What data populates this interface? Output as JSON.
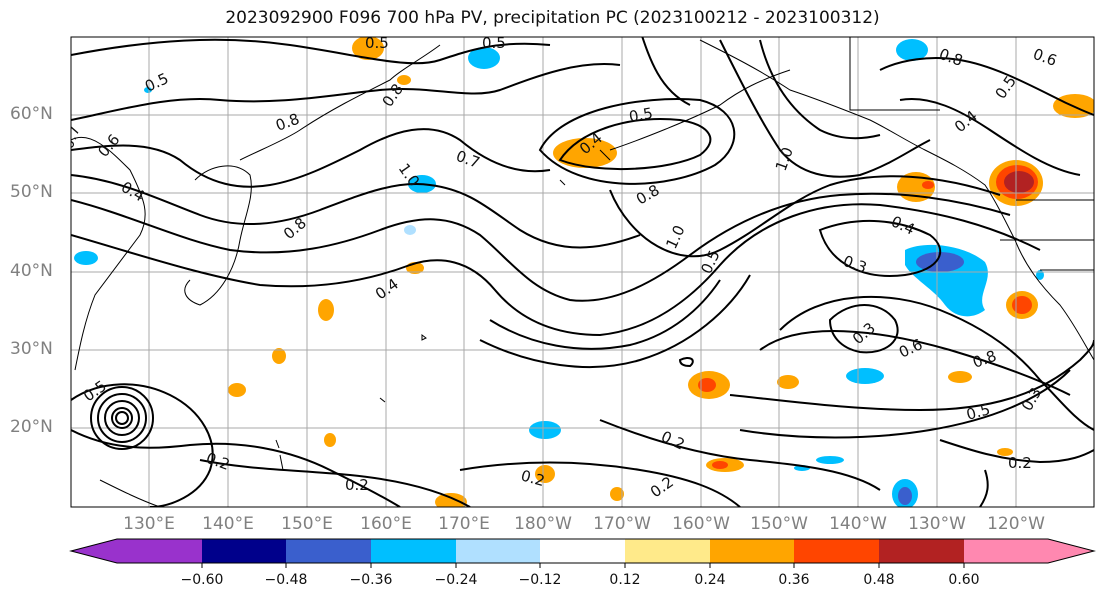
{
  "title": "2023092900 F096 700 hPa PV, precipitation PC (2023100212 - 2023100312)",
  "lat_labels": [
    "60°N",
    "50°N",
    "40°N",
    "30°N",
    "20°N"
  ],
  "lon_labels": [
    "130°E",
    "140°E",
    "150°E",
    "160°E",
    "170°E",
    "180°W",
    "170°W",
    "160°W",
    "150°W",
    "140°W",
    "130°W",
    "120°W"
  ],
  "contour_labels": [
    "0.5",
    "0.5",
    "0.8",
    "0.7",
    "0.5",
    "0.6",
    "0.4",
    "0.8",
    "0.7",
    "0.4",
    "0.5",
    "1.0",
    "0.4",
    "0.8",
    "1.0",
    "0.5",
    "0.8",
    "0.5",
    "0.4",
    "0.3",
    "0.3",
    "0.6",
    "0.8",
    "0.5",
    "0.3",
    "0.2",
    "0.2",
    "0.2",
    "0.2",
    "0.2",
    "0.2",
    "0.6",
    "0.4",
    "0.5",
    "0.8",
    "1.0",
    "0.6",
    "0.5"
  ],
  "colorbar": {
    "ticks": [
      "−0.60",
      "−0.48",
      "−0.36",
      "−0.24",
      "−0.12",
      "0.12",
      "0.24",
      "0.36",
      "0.48",
      "0.60"
    ],
    "colors": [
      "#9932cc",
      "#00008b",
      "#3a5fcd",
      "#00bfff",
      "#b0e0ff",
      "#ffffff",
      "#ffea8a",
      "#ffa500",
      "#ff4500",
      "#b22222",
      "#ff88b0"
    ]
  }
}
